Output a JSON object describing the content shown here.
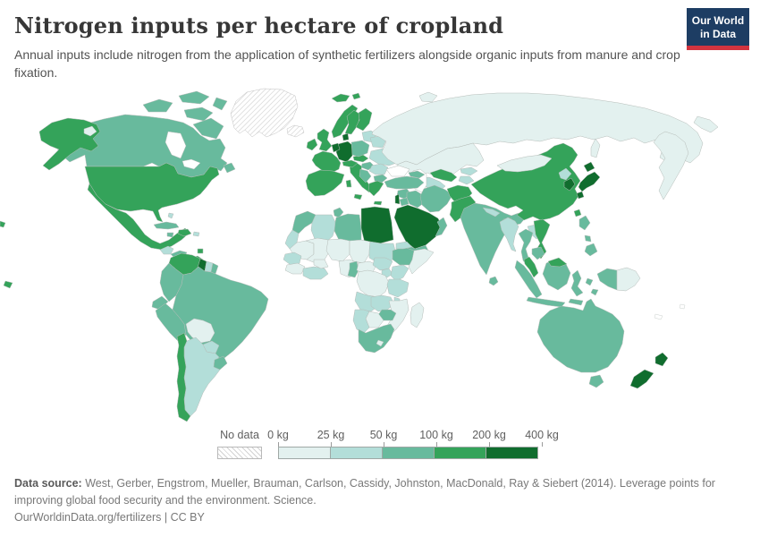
{
  "header": {
    "title": "Nitrogen inputs per hectare of cropland",
    "subtitle": "Annual inputs include nitrogen from the application of synthetic fertilizers alongside organic inputs from manure and crop fixation.",
    "logo": {
      "line1": "Our World",
      "line2": "in Data"
    }
  },
  "colors": {
    "logo_navy": "#1d3d63",
    "logo_red": "#d2343f",
    "title_text": "#373737",
    "body_text": "#535353",
    "footer_text": "#787878",
    "map_border": "#b5bcb8",
    "ocean": "#ffffff",
    "no_data_line": "#cfcfcf"
  },
  "legend": {
    "no_data_label": "No data",
    "tick_labels": [
      "0 kg",
      "25 kg",
      "50 kg",
      "100 kg",
      "200 kg",
      "400 kg"
    ],
    "bin_colors": [
      "#e3f1ef",
      "#b3ded9",
      "#68ba9d",
      "#34a35a",
      "#106d2e"
    ]
  },
  "footer": {
    "source_label": "Data source:",
    "source_text": "West, Gerber, Engstrom, Mueller, Brauman, Carlson, Cassidy, Johnston, MacDonald, Ray & Siebert (2014). Leverage points for improving global food security and the environment. Science.",
    "url": "OurWorldinData.org/fertilizers",
    "separator": "|",
    "license": "CC BY"
  },
  "chart_data": {
    "type": "choropleth-map",
    "title": "Nitrogen inputs per hectare of cropland",
    "unit": "kg",
    "bins": [
      "0-25 kg",
      "25-50 kg",
      "50-100 kg",
      "100-200 kg",
      "200-400 kg"
    ],
    "bin_colors": [
      "#e3f1ef",
      "#b3ded9",
      "#68ba9d",
      "#34a35a",
      "#106d2e"
    ],
    "no_data": [
      "Greenland",
      "Iceland"
    ]
  },
  "map": {
    "regions": {
      "greenland": -1,
      "iceland": -1,
      "canada": 2,
      "canada-island-1": 2,
      "canada-island-2": 2,
      "canada-island-3": 2,
      "canada-island-4": 2,
      "baffin-island": 2,
      "newfoundland": 2,
      "alaska": 3,
      "wrangel-island": 0,
      "usa": 3,
      "hawaii": 3,
      "pacific-fragment": 3,
      "mexico": 3,
      "guatemala": 1,
      "nicaragua": 2,
      "costa-rica-panama": 3,
      "cuba": 2,
      "jamaica": 2,
      "hispaniola": 3,
      "puerto-rico": 1,
      "bahamas": 1,
      "trinidad": 3,
      "venezuela": 3,
      "guyana": 4,
      "suriname": 1,
      "french-guiana": 2,
      "colombia": 2,
      "ecuador": 2,
      "peru": 2,
      "brazil": 2,
      "bolivia": 0,
      "paraguay": 1,
      "uruguay": 2,
      "argentina": 1,
      "chile": 3,
      "uk": 3,
      "ireland": 3,
      "norway": 3,
      "sweden": 3,
      "finland": 3,
      "svalbard": 3,
      "svalbard-east": 3,
      "denmark": 4,
      "germany": 4,
      "benelux": 4,
      "france": 3,
      "spain": 3,
      "italy": 3,
      "sicily": 3,
      "sardinia": 3,
      "greece": 3,
      "crete": 3,
      "switzerland-austria": 3,
      "czech-slovakia": 3,
      "poland": 2,
      "baltics": 1,
      "belarus": 1,
      "ukraine": 1,
      "hungary": 2,
      "romania": 1,
      "balkans": 2,
      "bulgaria": 2,
      "russia": 0,
      "russia-far-east": 0,
      "chukotka": 0,
      "novaya-zemlya": 0,
      "sakhalin": 0,
      "kazakhstan": 0,
      "uzbekistan": 3,
      "turkmenistan": 1,
      "kyrgyzstan": 1,
      "tajikistan": 1,
      "turkey": 2,
      "caucasus": 2,
      "syria": 2,
      "israel-lebanon": 4,
      "jordan": 2,
      "iraq": 2,
      "iran": 2,
      "saudi-arabia": 4,
      "yemen": 2,
      "oman": 2,
      "afghanistan": 3,
      "pakistan": 3,
      "india": 2,
      "nepal": 1,
      "bangladesh": 3,
      "sri-lanka": 2,
      "china": 3,
      "mongolia": 0,
      "north-korea": 1,
      "south-korea": 4,
      "japan-hokkaido": 4,
      "japan-honshu": 4,
      "japan-kyushu": 4,
      "taiwan": 3,
      "myanmar": 1,
      "thailand": 2,
      "laos": 1,
      "vietnam": 3,
      "cambodia": 2,
      "malay-peninsula": 3,
      "sumatra": 2,
      "java": 2,
      "borneo": 2,
      "malaysia-borneo": 3,
      "sulawesi": 2,
      "moluccas-north": 2,
      "moluccas-south": 2,
      "lesser-sunda": 2,
      "west-papua": 2,
      "papua-new-guinea": 0,
      "luzon": 2,
      "visayas": 2,
      "mindanao": 2,
      "australia": 2,
      "tasmania": 2,
      "new-zealand-north": 4,
      "new-zealand-south": 4,
      "morocco": 2,
      "western-sahara": 1,
      "algeria": 1,
      "tunisia": 2,
      "libya": 2,
      "egypt": 4,
      "mauritania": 0,
      "mali": 0,
      "niger": 0,
      "chad": 0,
      "sudan": 1,
      "senegal": 1,
      "guinea": 0,
      "ivory-coast-ghana": 1,
      "burkina-faso": 0,
      "nigeria": 0,
      "cameroon": 2,
      "central-african-republic": 0,
      "south-sudan": 1,
      "ethiopia": 2,
      "eritrea-djibouti": 1,
      "somalia": 0,
      "uganda": 1,
      "kenya": 1,
      "drc": 0,
      "tanzania": 1,
      "angola": 1,
      "zambia": 1,
      "malawi": 1,
      "mozambique": 0,
      "zimbabwe": 2,
      "botswana": 0,
      "namibia": 1,
      "south-africa": 2,
      "lesotho": 0,
      "madagascar": 0
    }
  }
}
